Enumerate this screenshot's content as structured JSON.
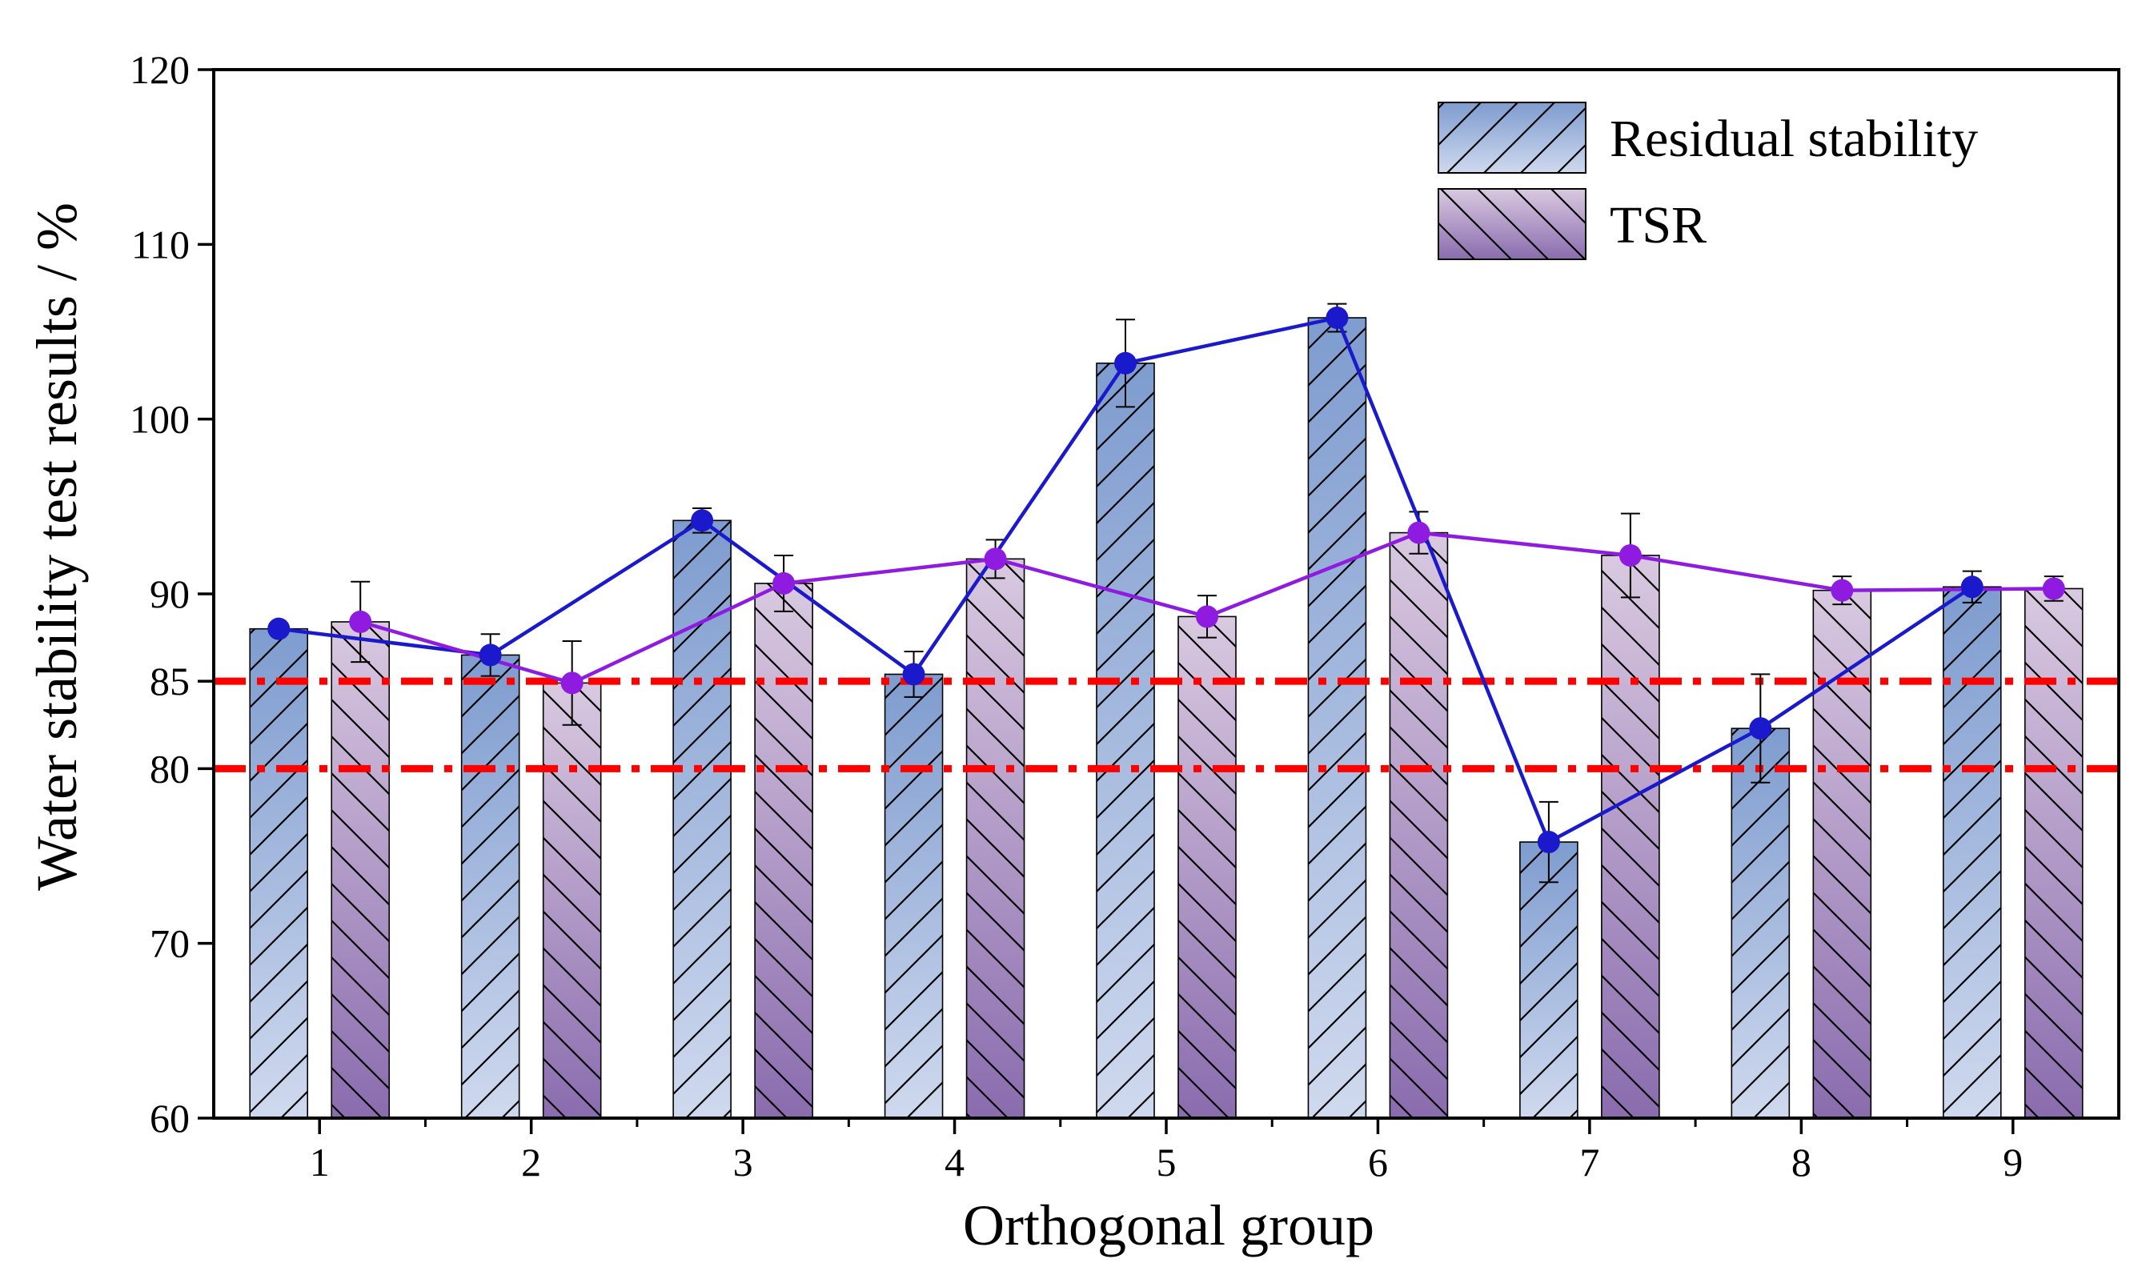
{
  "chart_data": {
    "type": "bar",
    "xlabel": "Orthogonal group",
    "ylabel": "Water stability test results / %",
    "categories": [
      "1",
      "2",
      "3",
      "4",
      "5",
      "6",
      "7",
      "8",
      "9"
    ],
    "ylim": [
      60,
      120
    ],
    "yticks": [
      60,
      70,
      80,
      85,
      90,
      100,
      110,
      120
    ],
    "series": [
      {
        "name": "Residual stability",
        "values": [
          88.0,
          86.5,
          94.2,
          85.4,
          103.2,
          105.8,
          75.8,
          82.3,
          90.4
        ],
        "errors": [
          0.3,
          1.2,
          0.7,
          1.3,
          2.5,
          0.8,
          2.3,
          3.1,
          0.9
        ],
        "bar_color_top": "#7e9ccf",
        "bar_color_bottom": "#cfd9ee",
        "line_color": "#1a1acc"
      },
      {
        "name": "TSR",
        "values": [
          88.4,
          84.9,
          90.6,
          92.0,
          88.7,
          93.5,
          92.2,
          90.2,
          90.3
        ],
        "errors": [
          2.3,
          2.4,
          1.6,
          1.1,
          1.2,
          1.2,
          2.4,
          0.8,
          0.7
        ],
        "bar_color_top": "#d9c9e0",
        "bar_color_bottom": "#8a6cae",
        "line_color": "#8f1ae0"
      }
    ],
    "reference_lines": [
      {
        "value": 85,
        "color": "#ff0000",
        "style": "dash-dot"
      },
      {
        "value": 80,
        "color": "#ff0000",
        "style": "dash-dot"
      }
    ],
    "legend_position": "top-right",
    "grid": false
  }
}
